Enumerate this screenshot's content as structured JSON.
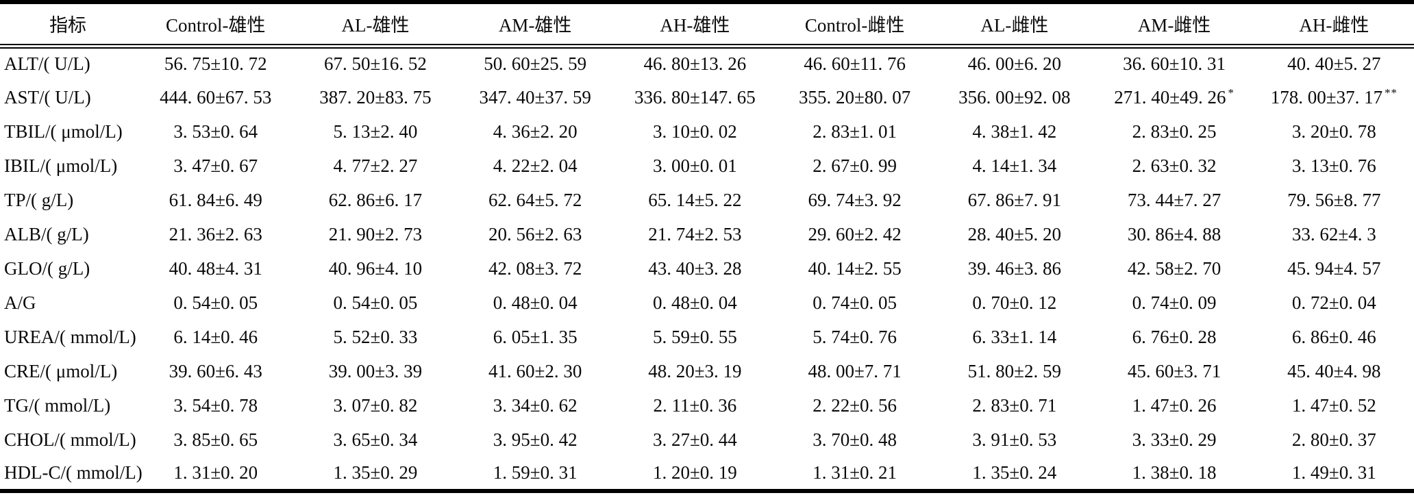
{
  "table": {
    "name": "serum-biochemistry-table",
    "columns": [
      "指标",
      "Control-雄性",
      "AL-雄性",
      "AM-雄性",
      "AH-雄性",
      "Control-雌性",
      "AL-雌性",
      "AM-雌性",
      "AH-雌性"
    ],
    "rows": [
      {
        "label": "ALT/( U/L)",
        "values": [
          "56. 75±10. 72",
          "67. 50±16. 52",
          "50. 60±25. 59",
          "46. 80±13. 26",
          "46. 60±11. 76",
          "46. 00±6. 20",
          "36. 60±10. 31",
          "40. 40±5. 27"
        ]
      },
      {
        "label": "AST/( U/L)",
        "values": [
          "444. 60±67. 53",
          "387. 20±83. 75",
          "347. 40±37. 59",
          "336. 80±147. 65",
          "355. 20±80. 07",
          "356. 00±92. 08",
          "271. 40±49. 26",
          "178. 00±37. 17"
        ],
        "sups": [
          "",
          "",
          "",
          "",
          "",
          "",
          "*",
          "**"
        ]
      },
      {
        "label": "TBIL/( μmol/L)",
        "values": [
          "3. 53±0. 64",
          "5. 13±2. 40",
          "4. 36±2. 20",
          "3. 10±0. 02",
          "2. 83±1. 01",
          "4. 38±1. 42",
          "2. 83±0. 25",
          "3. 20±0. 78"
        ]
      },
      {
        "label": "IBIL/( μmol/L)",
        "values": [
          "3. 47±0. 67",
          "4. 77±2. 27",
          "4. 22±2. 04",
          "3. 00±0. 01",
          "2. 67±0. 99",
          "4. 14±1. 34",
          "2. 63±0. 32",
          "3. 13±0. 76"
        ]
      },
      {
        "label": "TP/( g/L)",
        "values": [
          "61. 84±6. 49",
          "62. 86±6. 17",
          "62. 64±5. 72",
          "65. 14±5. 22",
          "69. 74±3. 92",
          "67. 86±7. 91",
          "73. 44±7. 27",
          "79. 56±8. 77"
        ]
      },
      {
        "label": "ALB/( g/L)",
        "values": [
          "21. 36±2. 63",
          "21. 90±2. 73",
          "20. 56±2. 63",
          "21. 74±2. 53",
          "29. 60±2. 42",
          "28. 40±5. 20",
          "30. 86±4. 88",
          "33. 62±4. 3"
        ]
      },
      {
        "label": "GLO/( g/L)",
        "values": [
          "40. 48±4. 31",
          "40. 96±4. 10",
          "42. 08±3. 72",
          "43. 40±3. 28",
          "40. 14±2. 55",
          "39. 46±3. 86",
          "42. 58±2. 70",
          "45. 94±4. 57"
        ]
      },
      {
        "label": "A/G",
        "values": [
          "0. 54±0. 05",
          "0. 54±0. 05",
          "0. 48±0. 04",
          "0. 48±0. 04",
          "0. 74±0. 05",
          "0. 70±0. 12",
          "0. 74±0. 09",
          "0. 72±0. 04"
        ]
      },
      {
        "label": "UREA/( mmol/L)",
        "values": [
          "6. 14±0. 46",
          "5. 52±0. 33",
          "6. 05±1. 35",
          "5. 59±0. 55",
          "5. 74±0. 76",
          "6. 33±1. 14",
          "6. 76±0. 28",
          "6. 86±0. 46"
        ]
      },
      {
        "label": "CRE/( μmol/L)",
        "values": [
          "39. 60±6. 43",
          "39. 00±3. 39",
          "41. 60±2. 30",
          "48. 20±3. 19",
          "48. 00±7. 71",
          "51. 80±2. 59",
          "45. 60±3. 71",
          "45. 40±4. 98"
        ]
      },
      {
        "label": "TG/( mmol/L)",
        "values": [
          "3. 54±0. 78",
          "3. 07±0. 82",
          "3. 34±0. 62",
          "2. 11±0. 36",
          "2. 22±0. 56",
          "2. 83±0. 71",
          "1. 47±0. 26",
          "1. 47±0. 52"
        ]
      },
      {
        "label": "CHOL/( mmol/L)",
        "values": [
          "3. 85±0. 65",
          "3. 65±0. 34",
          "3. 95±0. 42",
          "3. 27±0. 44",
          "3. 70±0. 48",
          "3. 91±0. 53",
          "3. 33±0. 29",
          "2. 80±0. 37"
        ]
      },
      {
        "label": "HDL-C/( mmol/L)",
        "values": [
          "1. 31±0. 20",
          "1. 35±0. 29",
          "1. 59±0. 31",
          "1. 20±0. 19",
          "1. 31±0. 21",
          "1. 35±0. 24",
          "1. 38±0. 18",
          "1. 49±0. 31"
        ]
      }
    ]
  },
  "colors": {
    "text": "#0a0a0a",
    "background": "#ffffff",
    "rule": "#000000"
  }
}
